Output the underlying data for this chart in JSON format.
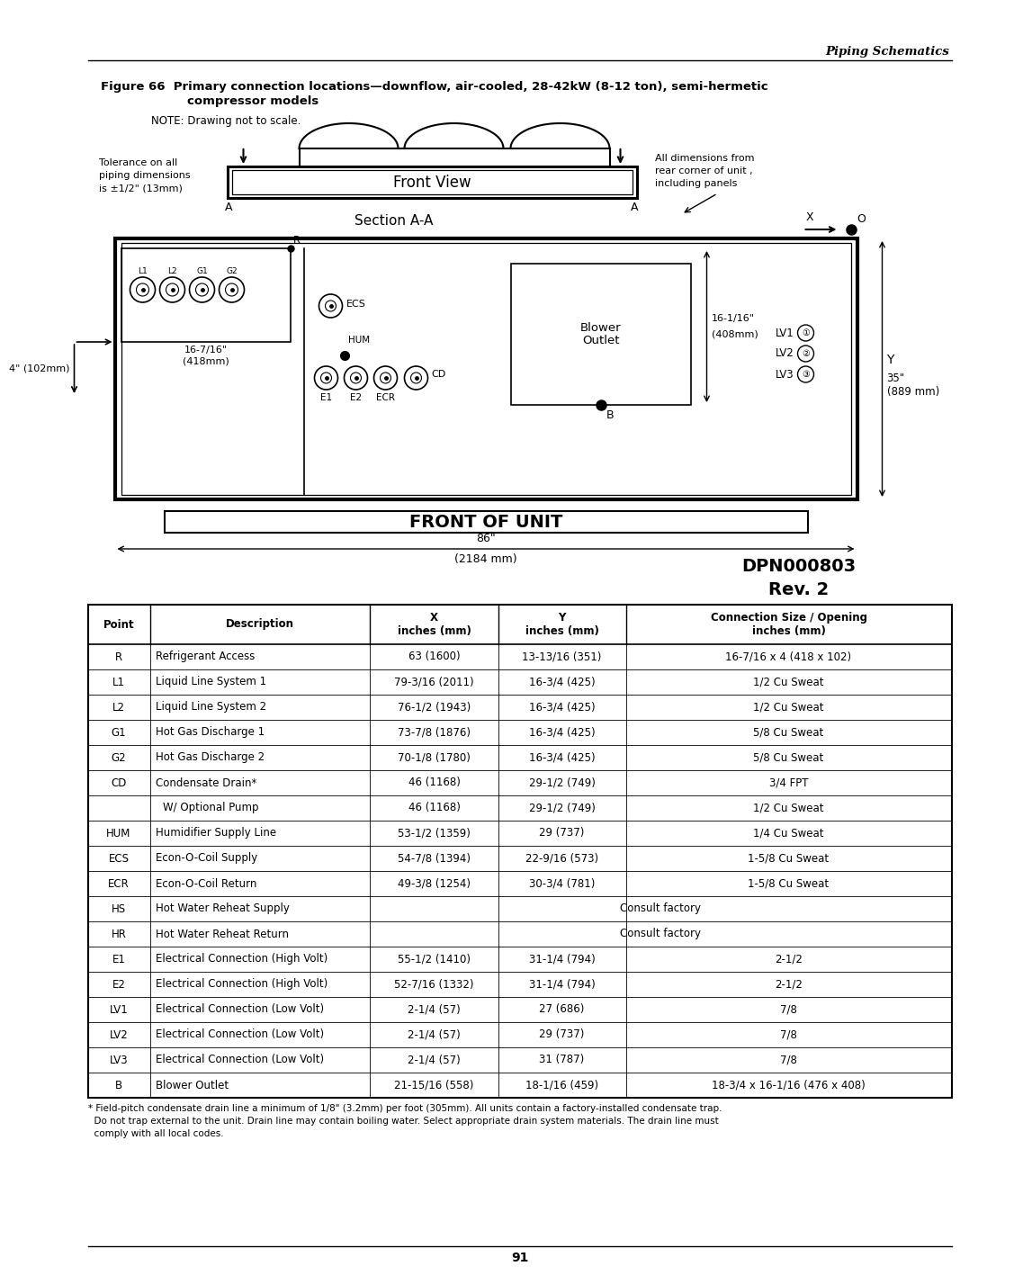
{
  "header_right": "Piping Schematics",
  "figure_title_line1": "Figure 66  Primary connection locations—downflow, air-cooled, 28-42kW (8-12 ton), semi-hermetic",
  "figure_title_line2": "compressor models",
  "note_text": "NOTE: Drawing not to scale.",
  "tolerance_text": "Tolerance on all\npiping dimensions\nis ±1/2\" (13mm)",
  "front_view_label": "Front View",
  "section_label": "Section A-A",
  "front_of_unit_label": "FRONT OF UNIT",
  "dim_86": "86\"",
  "dim_2184": "(2184 mm)",
  "dim_35": "35\"",
  "dim_889": "(889 mm)",
  "dim_4": "4\" (102mm)",
  "dim_16_7_16_line1": "16-7/16\"",
  "dim_16_7_16_line2": "(418mm)",
  "dim_16_1_16_line1": "16-1/16\"",
  "dim_16_1_16_line2": "(408mm)",
  "blower_outlet": "Blower\nOutlet",
  "all_dimensions": "All dimensions from\nrear corner of unit ,\nincluding panels",
  "dpn_line1": "DPN000803",
  "dpn_line2": "Rev. 2",
  "table_headers": [
    "Point",
    "Description",
    "X\ninches (mm)",
    "Y\ninches (mm)",
    "Connection Size / Opening\ninches (mm)"
  ],
  "table_rows": [
    [
      "R",
      "Refrigerant Access",
      "63 (1600)",
      "13-13/16 (351)",
      "16-7/16 x 4 (418 x 102)"
    ],
    [
      "L1",
      "Liquid Line System 1",
      "79-3/16 (2011)",
      "16-3/4 (425)",
      "1/2 Cu Sweat"
    ],
    [
      "L2",
      "Liquid Line System 2",
      "76-1/2 (1943)",
      "16-3/4 (425)",
      "1/2 Cu Sweat"
    ],
    [
      "G1",
      "Hot Gas Discharge 1",
      "73-7/8 (1876)",
      "16-3/4 (425)",
      "5/8 Cu Sweat"
    ],
    [
      "G2",
      "Hot Gas Discharge 2",
      "70-1/8 (1780)",
      "16-3/4 (425)",
      "5/8 Cu Sweat"
    ],
    [
      "CD",
      "Condensate Drain*",
      "46 (1168)",
      "29-1/2 (749)",
      "3/4 FPT"
    ],
    [
      "",
      "W/ Optional Pump",
      "46 (1168)",
      "29-1/2 (749)",
      "1/2 Cu Sweat"
    ],
    [
      "HUM",
      "Humidifier Supply Line",
      "53-1/2 (1359)",
      "29 (737)",
      "1/4 Cu Sweat"
    ],
    [
      "ECS",
      "Econ-O-Coil Supply",
      "54-7/8 (1394)",
      "22-9/16 (573)",
      "1-5/8 Cu Sweat"
    ],
    [
      "ECR",
      "Econ-O-Coil Return",
      "49-3/8 (1254)",
      "30-3/4 (781)",
      "1-5/8 Cu Sweat"
    ],
    [
      "HS",
      "Hot Water Reheat Supply",
      "CONSULT_FACTORY",
      "",
      ""
    ],
    [
      "HR",
      "Hot Water Reheat Return",
      "CONSULT_FACTORY",
      "",
      ""
    ],
    [
      "E1",
      "Electrical Connection (High Volt)",
      "55-1/2 (1410)",
      "31-1/4 (794)",
      "2-1/2"
    ],
    [
      "E2",
      "Electrical Connection (High Volt)",
      "52-7/16 (1332)",
      "31-1/4 (794)",
      "2-1/2"
    ],
    [
      "LV1",
      "Electrical Connection (Low Volt)",
      "2-1/4 (57)",
      "27 (686)",
      "7/8"
    ],
    [
      "LV2",
      "Electrical Connection (Low Volt)",
      "2-1/4 (57)",
      "29 (737)",
      "7/8"
    ],
    [
      "LV3",
      "Electrical Connection (Low Volt)",
      "2-1/4 (57)",
      "31 (787)",
      "7/8"
    ],
    [
      "B",
      "Blower Outlet",
      "21-15/16 (558)",
      "18-1/16 (459)",
      "18-3/4 x 16-1/16 (476 x 408)"
    ]
  ],
  "footnote_line1": "* Field-pitch condensate drain line a minimum of 1/8\" (3.2mm) per foot (305mm). All units contain a factory-installed condensate trap.",
  "footnote_line2": "  Do not trap external to the unit. Drain line may contain boiling water. Select appropriate drain system materials. The drain line must",
  "footnote_line3": "  comply with all local codes.",
  "page_number": "91",
  "bg_color": "#ffffff"
}
